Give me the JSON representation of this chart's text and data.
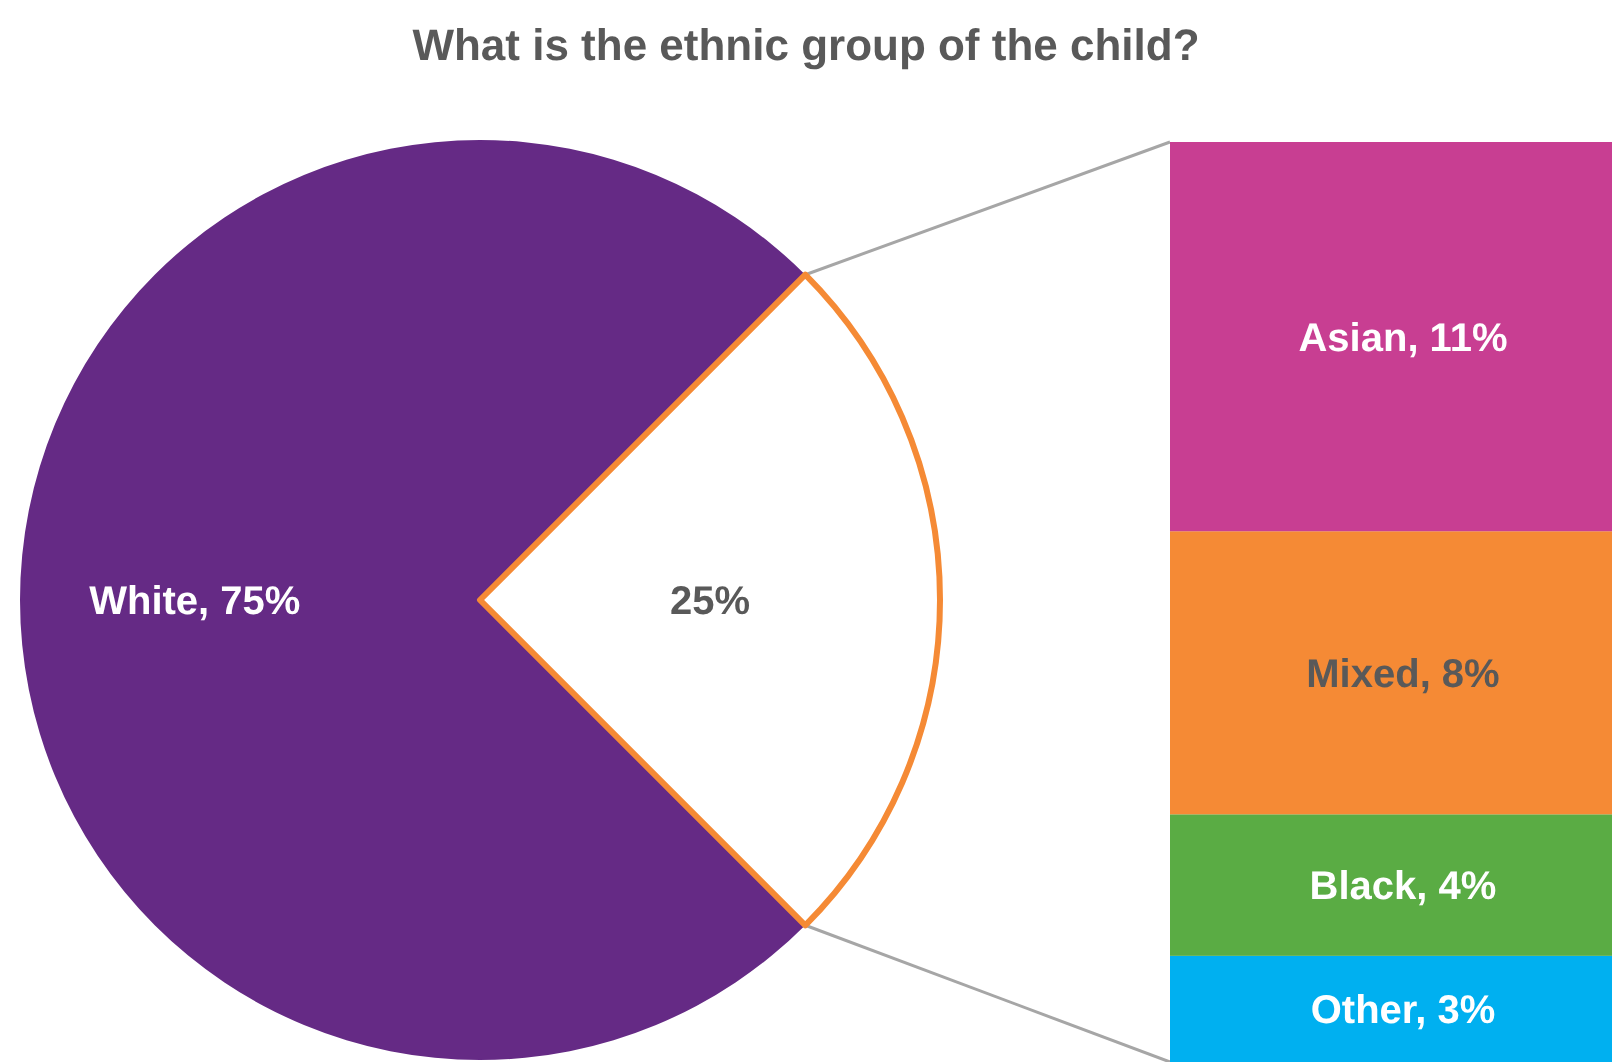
{
  "chart_data": [
    {
      "type": "pie",
      "title": "What is the ethnic group of the child?",
      "categories": [
        null,
        null
      ],
      "values": [
        75,
        25
      ],
      "colors": [
        "#652a85",
        "#ffffff"
      ],
      "value_labels": [
        "White, 75%",
        "25%"
      ]
    },
    {
      "type": "bar",
      "stacked": true,
      "categories": [
        null
      ],
      "series": [
        {
          "color": "#00b0f0",
          "values": [
            3
          ],
          "value_labels": [
            "Other, 3%"
          ]
        },
        {
          "color": "#5aac44",
          "values": [
            4
          ],
          "value_labels": [
            "Black, 4%"
          ]
        },
        {
          "color": "#f58a35",
          "values": [
            8
          ],
          "value_labels": [
            "Mixed, 8%"
          ]
        },
        {
          "color": "#c83e92",
          "values": [
            11
          ],
          "value_labels": [
            "Asian, 11%"
          ]
        }
      ]
    }
  ]
}
